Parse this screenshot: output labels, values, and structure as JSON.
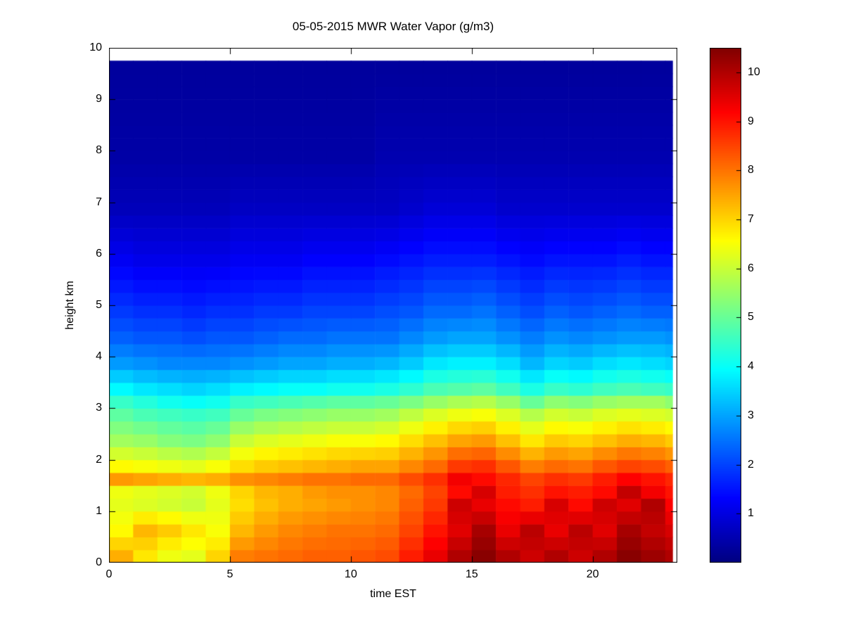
{
  "chart_data": {
    "type": "heatmap",
    "title": "05-05-2015 MWR Water Vapor (g/m3)",
    "xlabel": "time EST",
    "ylabel": "height km",
    "units": "g/m3",
    "colormap": "jet",
    "grid": "off",
    "xlim": [
      0,
      23.5
    ],
    "ylim": [
      0,
      10
    ],
    "clim": [
      0,
      10.5
    ],
    "x_ticks": [
      0,
      5,
      10,
      15,
      20
    ],
    "y_ticks": [
      0,
      1,
      2,
      3,
      4,
      5,
      6,
      7,
      8,
      9,
      10
    ],
    "colorbar_ticks": [
      1,
      2,
      3,
      4,
      5,
      6,
      7,
      8,
      9,
      10
    ],
    "x_hours": [
      0,
      1,
      2,
      3,
      4,
      5,
      6,
      7,
      8,
      9,
      10,
      11,
      12,
      13,
      14,
      15,
      16,
      17,
      18,
      19,
      20,
      21,
      22,
      23
    ],
    "x_data_range": [
      0,
      23.3
    ],
    "y_data_range": [
      0,
      9.75
    ],
    "cell_height_km": 0.25,
    "profile_heights_km": [
      0.125,
      0.625,
      1.125,
      1.375,
      1.625,
      1.875,
      2.375,
      2.875,
      3.125,
      3.375,
      3.875,
      4.375,
      4.875,
      5.875,
      6.875,
      7.875,
      9.625
    ],
    "values_by_hour": [
      [
        7.4,
        6.6,
        6.3,
        6.4,
        7.6,
        6.6,
        5.6,
        4.9,
        4.5,
        3.9,
        2.9,
        2.3,
        1.9,
        1.2,
        0.6,
        0.4,
        0.3
      ],
      [
        6.8,
        7.3,
        6.2,
        6.3,
        7.5,
        6.5,
        5.5,
        4.7,
        4.3,
        3.7,
        2.8,
        2.2,
        1.8,
        1.1,
        0.6,
        0.4,
        0.3
      ],
      [
        6.4,
        7.1,
        6.1,
        6.2,
        7.4,
        6.4,
        5.3,
        4.6,
        4.1,
        3.6,
        2.7,
        2.2,
        1.8,
        1.1,
        0.6,
        0.4,
        0.3
      ],
      [
        6.3,
        6.8,
        6.0,
        6.1,
        7.3,
        6.3,
        5.2,
        4.5,
        4.0,
        3.5,
        2.7,
        2.1,
        1.7,
        1.1,
        0.6,
        0.4,
        0.3
      ],
      [
        7.0,
        6.5,
        6.3,
        6.4,
        7.4,
        6.5,
        5.4,
        4.6,
        4.1,
        3.6,
        2.7,
        2.2,
        1.8,
        1.1,
        0.6,
        0.4,
        0.3
      ],
      [
        7.9,
        7.3,
        6.9,
        7.0,
        7.7,
        6.9,
        6.0,
        5.0,
        4.5,
        3.8,
        2.8,
        2.2,
        1.8,
        1.2,
        0.7,
        0.4,
        0.3
      ],
      [
        8.0,
        7.6,
        7.2,
        7.3,
        7.8,
        7.1,
        6.2,
        5.2,
        4.6,
        3.9,
        2.9,
        2.3,
        1.9,
        1.2,
        0.7,
        0.4,
        0.3
      ],
      [
        8.1,
        7.8,
        7.4,
        7.4,
        7.9,
        7.2,
        6.3,
        5.3,
        4.7,
        4.0,
        3.0,
        2.4,
        1.9,
        1.2,
        0.7,
        0.4,
        0.3
      ],
      [
        8.2,
        7.9,
        7.5,
        7.6,
        8.0,
        7.3,
        6.4,
        5.4,
        4.8,
        4.0,
        3.0,
        2.4,
        2.0,
        1.3,
        0.7,
        0.4,
        0.3
      ],
      [
        8.2,
        8.0,
        7.6,
        7.7,
        8.0,
        7.4,
        6.5,
        5.5,
        4.9,
        4.1,
        3.1,
        2.5,
        2.0,
        1.3,
        0.7,
        0.4,
        0.3
      ],
      [
        8.3,
        8.0,
        7.7,
        7.7,
        8.1,
        7.5,
        6.5,
        5.5,
        4.9,
        4.1,
        3.1,
        2.5,
        2.0,
        1.3,
        0.7,
        0.4,
        0.3
      ],
      [
        8.4,
        8.1,
        7.8,
        7.8,
        8.1,
        7.5,
        6.6,
        5.6,
        5.0,
        4.2,
        3.2,
        2.5,
        2.1,
        1.4,
        0.7,
        0.5,
        0.3
      ],
      [
        8.9,
        8.5,
        8.2,
        8.1,
        8.4,
        7.8,
        6.9,
        5.9,
        5.2,
        4.4,
        3.4,
        2.7,
        2.2,
        1.5,
        0.8,
        0.5,
        0.3
      ],
      [
        9.4,
        9.0,
        8.6,
        8.5,
        8.7,
        8.1,
        7.2,
        6.2,
        5.5,
        4.7,
        3.7,
        2.9,
        2.4,
        1.6,
        0.9,
        0.5,
        0.3
      ],
      [
        10.0,
        9.5,
        9.7,
        9.1,
        9.3,
        8.6,
        7.5,
        6.4,
        5.7,
        4.8,
        3.8,
        3.0,
        2.4,
        1.6,
        0.9,
        0.5,
        0.3
      ],
      [
        10.4,
        10.1,
        9.4,
        9.6,
        9.1,
        8.7,
        7.6,
        6.5,
        5.8,
        4.9,
        3.8,
        3.0,
        2.5,
        1.6,
        0.9,
        0.5,
        0.3
      ],
      [
        10.0,
        9.4,
        9.1,
        8.9,
        8.8,
        8.3,
        7.2,
        6.2,
        5.5,
        4.6,
        3.6,
        2.8,
        2.3,
        1.5,
        0.8,
        0.5,
        0.3
      ],
      [
        9.7,
        9.9,
        8.9,
        8.7,
        8.5,
        7.9,
        6.8,
        5.8,
        5.0,
        4.2,
        3.2,
        2.6,
        2.1,
        1.4,
        0.8,
        0.5,
        0.3
      ],
      [
        10.0,
        9.4,
        9.6,
        9.0,
        8.7,
        8.1,
        7.1,
        6.1,
        5.4,
        4.5,
        3.5,
        2.8,
        2.3,
        1.5,
        0.8,
        0.5,
        0.3
      ],
      [
        9.7,
        9.9,
        9.1,
        8.9,
        8.6,
        8.0,
        7.0,
        6.0,
        5.3,
        4.4,
        3.4,
        2.7,
        2.2,
        1.5,
        0.8,
        0.5,
        0.3
      ],
      [
        10.0,
        9.5,
        9.7,
        9.1,
        8.9,
        8.3,
        7.2,
        6.2,
        5.5,
        4.6,
        3.6,
        2.8,
        2.3,
        1.5,
        0.8,
        0.5,
        0.3
      ],
      [
        10.4,
        10.1,
        9.5,
        9.8,
        9.2,
        8.5,
        7.4,
        6.3,
        5.6,
        4.7,
        3.7,
        2.9,
        2.4,
        1.6,
        0.8,
        0.5,
        0.3
      ],
      [
        10.2,
        9.8,
        10.0,
        9.3,
        9.0,
        8.4,
        7.3,
        6.2,
        5.6,
        4.6,
        3.6,
        2.9,
        2.3,
        1.5,
        0.8,
        0.5,
        0.3
      ],
      [
        10.0,
        9.6,
        9.2,
        9.0,
        8.8,
        8.2,
        7.1,
        6.1,
        5.4,
        4.5,
        3.5,
        2.8,
        2.3,
        1.5,
        0.8,
        0.5,
        0.3
      ]
    ]
  }
}
